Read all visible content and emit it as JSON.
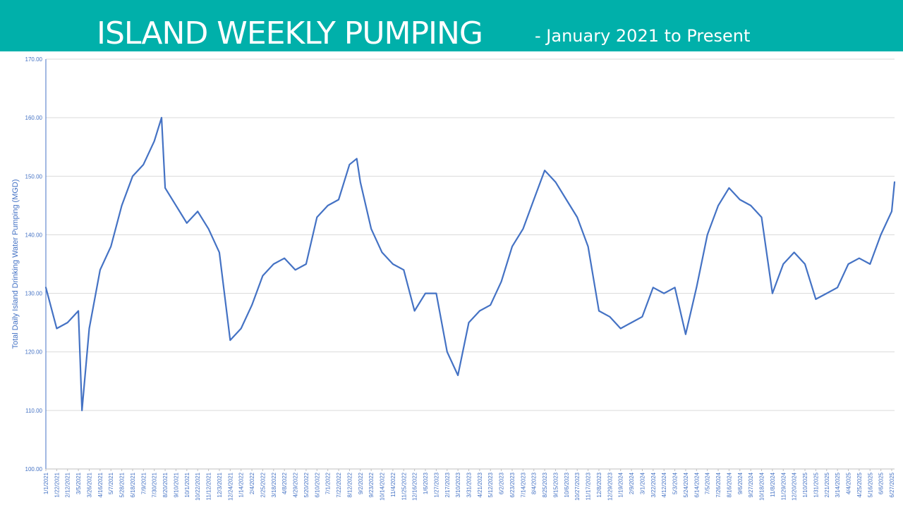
{
  "header": {
    "title": "ISLAND WEEKLY PUMPING",
    "subtitle": "- January 2021 to Present",
    "background_color": "#00b0aa",
    "text_color": "#ffffff"
  },
  "chart_data": {
    "type": "line",
    "ylabel": "Total Daily Island Drinking Water Pumping (MGD)",
    "xlabel": "",
    "ylim": [
      100,
      170
    ],
    "y_ticks": [
      "100.00",
      "110.00",
      "120.00",
      "130.00",
      "140.00",
      "150.00",
      "160.00",
      "170.00"
    ],
    "x_ticks": [
      "1/1/2021",
      "1/22/2021",
      "2/12/2021",
      "3/5/2021",
      "3/26/2021",
      "4/16/2021",
      "5/7/2021",
      "5/28/2021",
      "6/18/2021",
      "7/9/2021",
      "7/30/2021",
      "8/20/2021",
      "9/10/2021",
      "10/1/2021",
      "10/22/2021",
      "11/12/2021",
      "12/3/2021",
      "12/24/2021",
      "1/14/2022",
      "2/4/2022",
      "2/25/2022",
      "3/18/2022",
      "4/8/2022",
      "4/29/2022",
      "5/20/2022",
      "6/10/2022",
      "7/1/2022",
      "7/22/2022",
      "8/12/2022",
      "9/2/2022",
      "9/23/2022",
      "10/14/2022",
      "11/4/2022",
      "11/25/2022",
      "12/16/2022",
      "1/6/2023",
      "1/27/2023",
      "2/17/2023",
      "3/10/2023",
      "3/31/2023",
      "4/21/2023",
      "5/12/2023",
      "6/2/2023",
      "6/23/2023",
      "7/14/2023",
      "8/4/2023",
      "8/25/2023",
      "9/15/2023",
      "10/6/2023",
      "10/27/2023",
      "11/17/2023",
      "12/8/2023",
      "12/29/2023",
      "1/19/2024",
      "2/9/2024",
      "3/1/2024",
      "3/22/2024",
      "4/12/2024",
      "5/3/2024",
      "5/24/2024",
      "6/14/2024",
      "7/5/2024",
      "7/26/2024",
      "8/16/2024",
      "9/6/2024",
      "9/27/2024",
      "10/18/2024",
      "11/8/2024",
      "11/29/2024",
      "12/20/2024",
      "1/10/2025",
      "1/31/2025",
      "2/21/2025",
      "3/14/2025",
      "4/4/2025",
      "4/25/2025",
      "5/16/2025",
      "6/6/2025",
      "6/27/2025"
    ],
    "series": [
      {
        "color": "#4472c4",
        "x": [
          "1/1/2021",
          "1/22/2021",
          "2/12/2021",
          "3/5/2021",
          "3/12/2021",
          "3/26/2021",
          "4/16/2021",
          "5/7/2021",
          "5/28/2021",
          "6/18/2021",
          "7/9/2021",
          "7/30/2021",
          "8/13/2021",
          "8/20/2021",
          "9/10/2021",
          "10/1/2021",
          "10/22/2021",
          "11/12/2021",
          "12/3/2021",
          "12/24/2021",
          "1/14/2022",
          "2/4/2022",
          "2/25/2022",
          "3/18/2022",
          "4/8/2022",
          "4/29/2022",
          "5/20/2022",
          "6/10/2022",
          "7/1/2022",
          "7/22/2022",
          "8/12/2022",
          "8/26/2022",
          "9/2/2022",
          "9/23/2022",
          "10/14/2022",
          "11/4/2022",
          "11/25/2022",
          "12/16/2022",
          "1/6/2023",
          "1/27/2023",
          "2/17/2023",
          "3/10/2023",
          "3/31/2023",
          "4/21/2023",
          "5/12/2023",
          "6/2/2023",
          "6/23/2023",
          "7/14/2023",
          "8/4/2023",
          "8/25/2023",
          "9/15/2023",
          "10/6/2023",
          "10/27/2023",
          "11/17/2023",
          "12/8/2023",
          "12/29/2023",
          "1/19/2024",
          "2/9/2024",
          "3/1/2024",
          "3/22/2024",
          "4/12/2024",
          "5/3/2024",
          "5/24/2024",
          "6/14/2024",
          "7/5/2024",
          "7/26/2024",
          "8/16/2024",
          "9/6/2024",
          "9/27/2024",
          "10/18/2024",
          "11/8/2024",
          "11/29/2024",
          "12/20/2024",
          "1/10/2025",
          "1/31/2025",
          "2/21/2025",
          "3/14/2025",
          "4/4/2025",
          "4/25/2025",
          "5/16/2025",
          "6/6/2025",
          "6/27/2025",
          "7/4/2025"
        ],
        "values": [
          131,
          124,
          125,
          127,
          110,
          124,
          134,
          138,
          145,
          150,
          152,
          156,
          160,
          148,
          145,
          142,
          144,
          141,
          137,
          122,
          124,
          128,
          133,
          135,
          136,
          134,
          135,
          143,
          145,
          146,
          152,
          153,
          149,
          141,
          137,
          135,
          134,
          127,
          130,
          130,
          120,
          116,
          125,
          127,
          128,
          132,
          138,
          141,
          146,
          151,
          149,
          146,
          143,
          138,
          127,
          126,
          124,
          125,
          126,
          131,
          130,
          131,
          123,
          131,
          140,
          145,
          148,
          146,
          145,
          143,
          130,
          135,
          137,
          135,
          129,
          130,
          131,
          135,
          136,
          135,
          140,
          144,
          149
        ]
      }
    ]
  }
}
